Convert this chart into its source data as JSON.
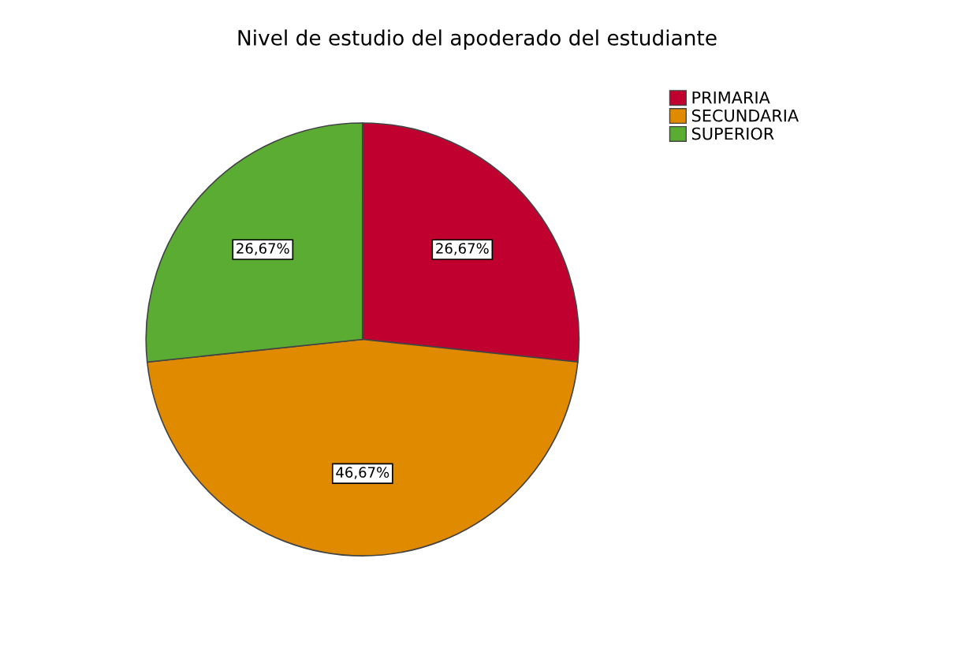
{
  "chart_data": {
    "type": "pie",
    "title": "Nivel de estudio del apoderado del estudiante",
    "categories": [
      "PRIMARIA",
      "SECUNDARIA",
      "SUPERIOR"
    ],
    "values": [
      26.67,
      46.67,
      26.67
    ],
    "colors": [
      "#c0002f",
      "#e08a00",
      "#5aac32"
    ],
    "value_labels": [
      "26,67%",
      "46,67%",
      "26,67%"
    ],
    "legend": "top right"
  }
}
